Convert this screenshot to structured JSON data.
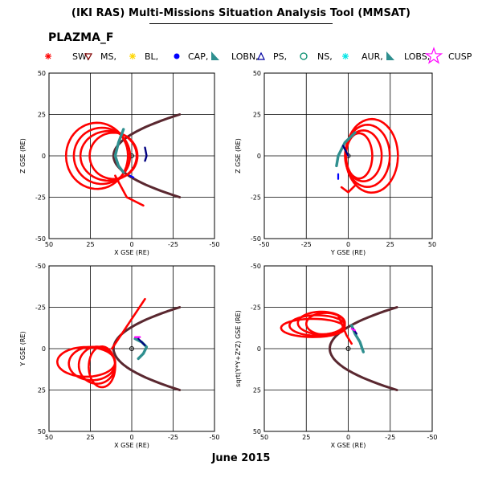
{
  "header": {
    "title": "(IKI RAS) Multi-Missions Situation Analysis Tool (MMSAT)",
    "instrument": "PLAZMA_F"
  },
  "legend": [
    {
      "label": "SW,",
      "color": "#ff0000",
      "symbol": "star"
    },
    {
      "label": "MS,",
      "color": "#800000",
      "symbol": "triangle-down"
    },
    {
      "label": "BL,",
      "color": "#ffd700",
      "symbol": "star"
    },
    {
      "label": "CAP,",
      "color": "#0000ff",
      "symbol": "dot"
    },
    {
      "label": "LOBN,",
      "color": "#2f8f8f",
      "symbol": "wedge"
    },
    {
      "label": "PS,",
      "color": "#0000a0",
      "symbol": "triangle-up"
    },
    {
      "label": "NS,",
      "color": "#008b6b",
      "symbol": "circle"
    },
    {
      "label": "AUR,",
      "color": "#00e5e5",
      "symbol": "star"
    },
    {
      "label": "LOBS,",
      "color": "#2f8f8f",
      "symbol": "wedge"
    },
    {
      "label": "CUSP",
      "color": "#ff00ff",
      "symbol": "star-outline"
    }
  ],
  "footer": {
    "date": "June 2015"
  },
  "colors": {
    "orbit": "#ff0000",
    "boundary": "#5a2830",
    "lobe": "#2f8f8f",
    "plasma_sheet": "#000080",
    "cap": "#0000ff",
    "cusp": "#ff00ff"
  },
  "chart_data": [
    {
      "type": "scatter",
      "xlabel": "X GSE (RE)",
      "ylabel": "Z GSE (RE)",
      "xlim": [
        50,
        -50
      ],
      "ylim": [
        -50,
        50
      ],
      "xticks": [
        50,
        25,
        0,
        -25,
        -50
      ],
      "yticks": [
        50,
        25,
        0,
        -25,
        -50
      ],
      "grid": true
    },
    {
      "type": "scatter",
      "xlabel": "Y GSE (RE)",
      "ylabel": "Z GSE (RE)",
      "xlim": [
        -50,
        50
      ],
      "ylim": [
        -50,
        50
      ],
      "xticks": [
        -50,
        -25,
        0,
        25,
        50
      ],
      "yticks": [
        50,
        25,
        0,
        -25,
        -50
      ],
      "grid": true
    },
    {
      "type": "scatter",
      "xlabel": "X GSE (RE)",
      "ylabel": "Y GSE (RE)",
      "xlim": [
        50,
        -50
      ],
      "ylim": [
        -50,
        50
      ],
      "xticks": [
        50,
        25,
        0,
        -25,
        -50
      ],
      "yticks": [
        -50,
        -25,
        0,
        25,
        50
      ],
      "grid": true
    },
    {
      "type": "scatter",
      "xlabel": "X GSE (RE)",
      "ylabel": "sqrt(Y*Y+Z*Z) GSE (RE)",
      "xlim": [
        50,
        -50
      ],
      "ylim": [
        -50,
        50
      ],
      "xticks": [
        50,
        25,
        0,
        -25,
        -50
      ],
      "yticks": [
        -50,
        -25,
        0,
        25,
        50
      ],
      "grid": true
    }
  ]
}
